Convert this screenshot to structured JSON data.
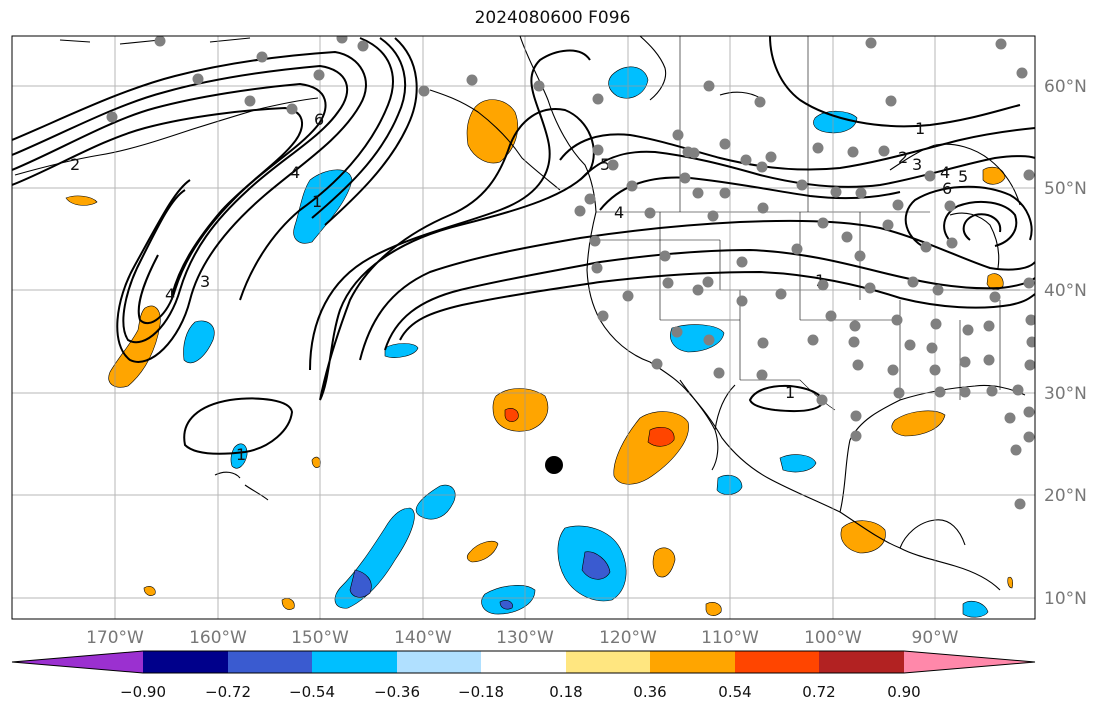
{
  "title": "2024080600 F096",
  "map": {
    "lon_ticks": [
      "170°W",
      "160°W",
      "150°W",
      "140°W",
      "130°W",
      "120°W",
      "110°W",
      "100°W",
      "90°W"
    ],
    "lat_ticks": [
      "60°N",
      "50°N",
      "40°N",
      "30°N",
      "20°N",
      "10°N"
    ],
    "contour_labels": [
      "1",
      "2",
      "3",
      "4",
      "5",
      "6"
    ]
  },
  "colorbar": {
    "ticks": [
      "−0.90",
      "−0.72",
      "−0.54",
      "−0.36",
      "−0.18",
      "0.18",
      "0.36",
      "0.54",
      "0.72",
      "0.90"
    ],
    "colors": [
      "#9b30d0",
      "#00008b",
      "#3a5bd0",
      "#00bfff",
      "#b0e0ff",
      "#ffffff",
      "#ffe680",
      "#ffa500",
      "#ff4500",
      "#b22222",
      "#ff88aa"
    ],
    "extend": "both"
  },
  "colors": {
    "contour": "#000000",
    "station_dot": "#808080",
    "grid": "#999999"
  }
}
